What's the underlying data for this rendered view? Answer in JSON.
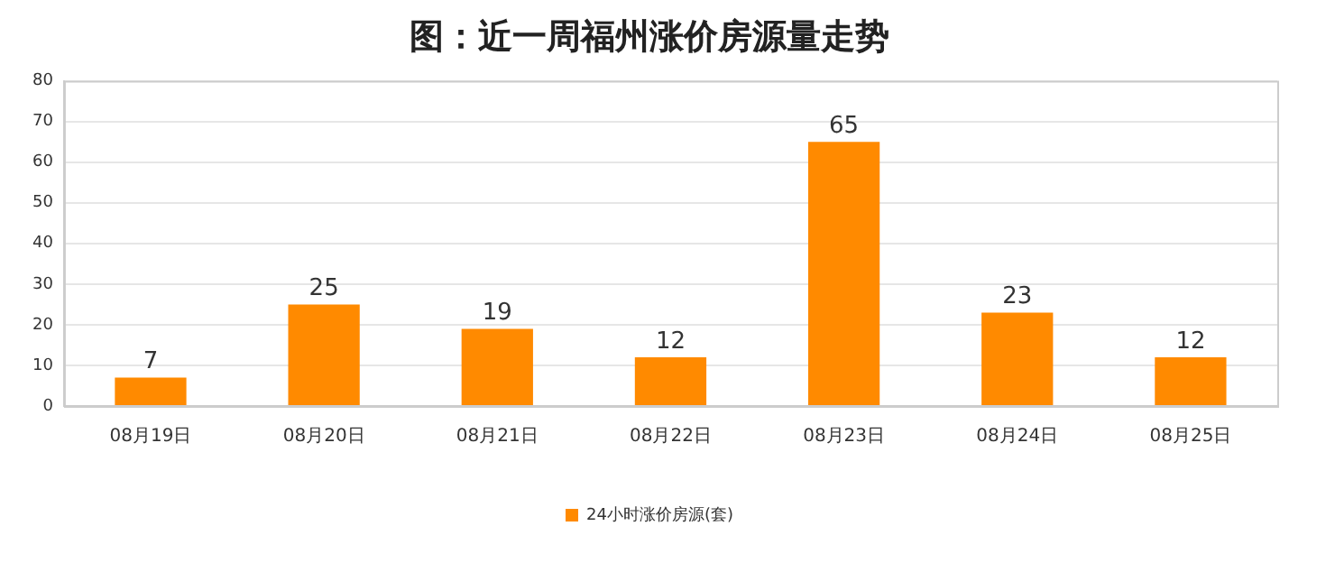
{
  "chart_data": {
    "type": "bar",
    "title": "图：近一周福州涨价房源量走势",
    "categories": [
      "08月19日",
      "08月20日",
      "08月21日",
      "08月22日",
      "08月23日",
      "08月24日",
      "08月25日"
    ],
    "series": [
      {
        "name": "24小时涨价房源(套)",
        "color": "#ff8a00",
        "values": [
          7,
          25,
          19,
          12,
          65,
          23,
          12
        ]
      }
    ],
    "ylim": [
      0,
      80
    ],
    "yticks": [
      0,
      10,
      20,
      30,
      40,
      50,
      60,
      70,
      80
    ],
    "grid": "y",
    "legend": "bottom",
    "data_labels": true
  }
}
